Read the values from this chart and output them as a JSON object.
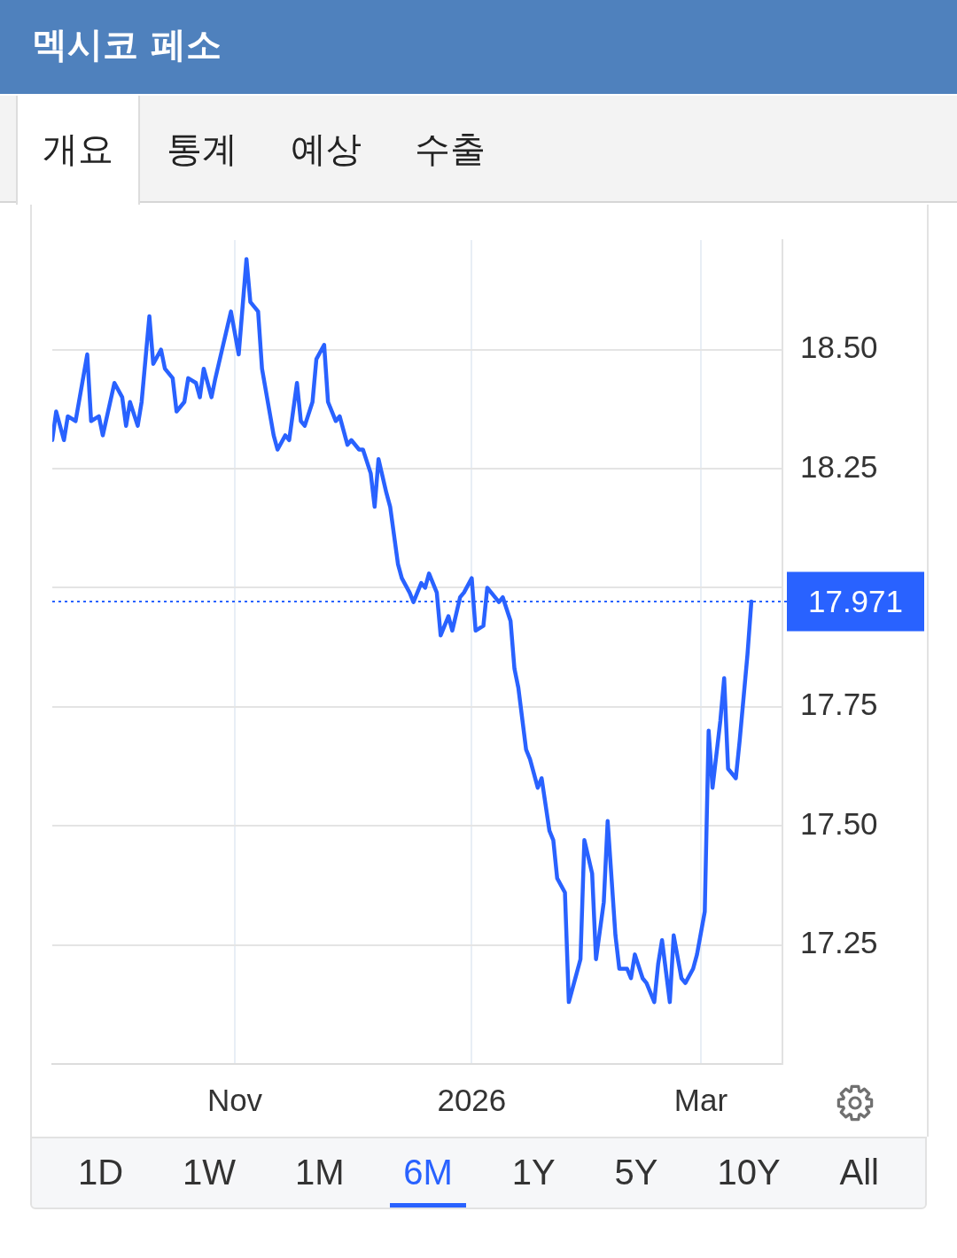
{
  "chart_data": {
    "type": "line",
    "title": "멕시코 페소",
    "x": [
      "2025-09-15",
      "2025-09-16",
      "2025-09-18",
      "2025-09-19",
      "2025-09-21",
      "2025-09-24",
      "2025-09-25",
      "2025-09-27",
      "2025-09-28",
      "2025-10-01",
      "2025-10-03",
      "2025-10-04",
      "2025-10-05",
      "2025-10-07",
      "2025-10-08",
      "2025-10-10",
      "2025-10-11",
      "2025-10-13",
      "2025-10-14",
      "2025-10-16",
      "2025-10-17",
      "2025-10-19",
      "2025-10-20",
      "2025-10-22",
      "2025-10-23",
      "2025-10-24",
      "2025-10-26",
      "2025-10-27",
      "2025-10-31",
      "2025-11-02",
      "2025-11-04",
      "2025-11-05",
      "2025-11-07",
      "2025-11-08",
      "2025-11-11",
      "2025-11-12",
      "2025-11-14",
      "2025-11-15",
      "2025-11-17",
      "2025-11-18",
      "2025-11-19",
      "2025-11-21",
      "2025-11-22",
      "2025-11-24",
      "2025-11-25",
      "2025-11-27",
      "2025-11-28",
      "2025-11-30",
      "2025-12-01",
      "2025-12-03",
      "2025-12-04",
      "2025-12-06",
      "2025-12-07",
      "2025-12-08",
      "2025-12-10",
      "2025-12-11",
      "2025-12-13",
      "2025-12-14",
      "2025-12-16",
      "2025-12-17",
      "2025-12-19",
      "2025-12-20",
      "2025-12-21",
      "2025-12-23",
      "2025-12-24",
      "2025-12-26",
      "2025-12-27",
      "2025-12-29",
      "2025-12-30",
      "2026-01-01",
      "2026-01-02",
      "2026-01-04",
      "2026-01-05",
      "2026-01-07",
      "2026-01-08",
      "2026-01-09",
      "2026-01-11",
      "2026-01-12",
      "2026-01-13",
      "2026-01-15",
      "2026-01-16",
      "2026-01-18",
      "2026-01-19",
      "2026-01-21",
      "2026-01-22",
      "2026-01-23",
      "2026-01-25",
      "2026-01-26",
      "2026-01-28",
      "2026-01-29",
      "2026-01-30",
      "2026-02-01",
      "2026-02-02",
      "2026-02-04",
      "2026-02-05",
      "2026-02-07",
      "2026-02-08",
      "2026-02-10",
      "2026-02-11",
      "2026-02-12",
      "2026-02-14",
      "2026-02-15",
      "2026-02-17",
      "2026-02-18",
      "2026-02-19",
      "2026-02-21",
      "2026-02-22",
      "2026-02-24",
      "2026-02-25",
      "2026-02-27",
      "2026-02-28",
      "2026-03-02",
      "2026-03-03",
      "2026-03-04",
      "2026-03-06",
      "2026-03-07",
      "2026-03-08",
      "2026-03-10",
      "2026-03-11",
      "2026-03-13",
      "2026-03-14"
    ],
    "series": [
      {
        "color": "#2962ff",
        "values": [
          18.31,
          18.37,
          18.31,
          18.36,
          18.35,
          18.49,
          18.35,
          18.36,
          18.32,
          18.43,
          18.4,
          18.34,
          18.39,
          18.34,
          18.39,
          18.57,
          18.47,
          18.5,
          18.46,
          18.44,
          18.37,
          18.39,
          18.44,
          18.43,
          18.4,
          18.46,
          18.4,
          18.44,
          18.58,
          18.49,
          18.69,
          18.6,
          18.58,
          18.46,
          18.32,
          18.29,
          18.32,
          18.31,
          18.43,
          18.35,
          18.34,
          18.39,
          18.48,
          18.51,
          18.39,
          18.35,
          18.36,
          18.3,
          18.31,
          18.29,
          18.29,
          18.24,
          18.17,
          18.27,
          18.2,
          18.17,
          18.05,
          18.02,
          17.99,
          17.97,
          18.01,
          18.0,
          18.03,
          17.99,
          17.9,
          17.94,
          17.91,
          17.98,
          17.99,
          18.02,
          17.91,
          17.92,
          18.0,
          17.98,
          17.97,
          17.98,
          17.93,
          17.83,
          17.79,
          17.66,
          17.64,
          17.58,
          17.6,
          17.49,
          17.47,
          17.39,
          17.36,
          17.13,
          17.19,
          17.22,
          17.47,
          17.4,
          17.22,
          17.34,
          17.51,
          17.27,
          17.2,
          17.2,
          17.18,
          17.23,
          17.18,
          17.17,
          17.13,
          17.21,
          17.26,
          17.13,
          17.27,
          17.18,
          17.17,
          17.2,
          17.23,
          17.32,
          17.7,
          17.58,
          17.72,
          17.81,
          17.62,
          17.6,
          17.68,
          17.86,
          17.971
        ]
      }
    ],
    "xlim": [
      "2025-09-15",
      "2026-03-22"
    ],
    "ylim": [
      17.0,
      18.73
    ],
    "xticks": [
      {
        "value": "2025-11-01",
        "label": "Nov"
      },
      {
        "value": "2026-01-01",
        "label": "2026"
      },
      {
        "value": "2026-03-01",
        "label": "Mar"
      }
    ],
    "yticks": [
      17.25,
      {
        "value": 17.5,
        "label": "17.50"
      },
      17.75,
      {
        "value": 18.0,
        "label": null
      },
      18.25,
      {
        "value": 18.5,
        "label": "18.50"
      }
    ],
    "grid": true,
    "legend": false,
    "marker": "none",
    "ref_lines": [
      {
        "axis": "y",
        "value": 17.971,
        "label": "17.971",
        "color": "#2962ff",
        "line_style": "dotted"
      }
    ],
    "annotations": [
      "개요",
      "통계",
      "예상",
      "수출",
      "1D",
      "1W",
      "1M",
      "6M",
      "1Y",
      "5Y",
      "10Y",
      "All"
    ]
  }
}
